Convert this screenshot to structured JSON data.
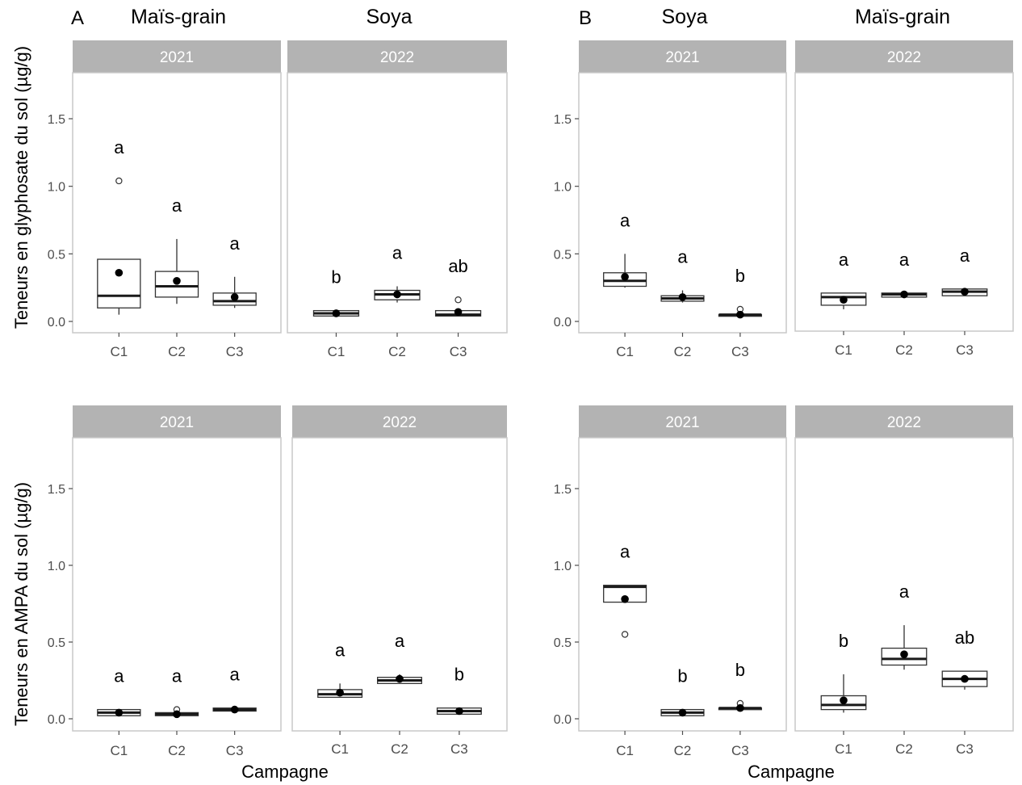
{
  "figure": {
    "panel_labels": [
      "A",
      "B"
    ],
    "crop_labels": [
      {
        "group": "A",
        "text": "Maïs-grain"
      },
      {
        "group": "A",
        "text": "Soya"
      },
      {
        "group": "B",
        "text": "Soya"
      },
      {
        "group": "B",
        "text": "Maïs-grain"
      }
    ],
    "y_labels": [
      "Teneurs en glyphosate du sol (µg/g)",
      "Teneurs en AMPA du sol (µg/g)"
    ],
    "x_label": "Campagne"
  },
  "chart_data": [
    {
      "type": "boxplot",
      "group": "A",
      "row": "glyphosate",
      "crop": "Maïs-grain",
      "facet": "2021",
      "ylim": [
        -0.06,
        1.83
      ],
      "yticks": [
        0.0,
        0.5,
        1.0,
        1.5
      ],
      "show_y_axis": true,
      "categories": [
        "C1",
        "C2",
        "C3"
      ],
      "boxes": [
        {
          "q1": 0.1,
          "median": 0.19,
          "q3": 0.46,
          "low": 0.05,
          "high": 0.46,
          "mean": 0.36,
          "outliers": [
            1.04
          ],
          "label": "a"
        },
        {
          "q1": 0.18,
          "median": 0.26,
          "q3": 0.37,
          "low": 0.13,
          "high": 0.61,
          "mean": 0.3,
          "outliers": [],
          "label": "a"
        },
        {
          "q1": 0.12,
          "median": 0.15,
          "q3": 0.21,
          "low": 0.1,
          "high": 0.33,
          "mean": 0.18,
          "outliers": [],
          "label": "a"
        }
      ]
    },
    {
      "type": "boxplot",
      "group": "A",
      "row": "glyphosate",
      "crop": "Soya",
      "facet": "2022",
      "ylim": [
        -0.06,
        1.83
      ],
      "yticks": [
        0.0,
        0.5,
        1.0,
        1.5
      ],
      "show_y_axis": false,
      "categories": [
        "C1",
        "C2",
        "C3"
      ],
      "boxes": [
        {
          "q1": 0.04,
          "median": 0.06,
          "q3": 0.08,
          "low": 0.04,
          "high": 0.08,
          "mean": 0.06,
          "outliers": [],
          "label": "b"
        },
        {
          "q1": 0.16,
          "median": 0.2,
          "q3": 0.23,
          "low": 0.14,
          "high": 0.26,
          "mean": 0.2,
          "outliers": [],
          "label": "a"
        },
        {
          "q1": 0.04,
          "median": 0.05,
          "q3": 0.08,
          "low": 0.04,
          "high": 0.08,
          "mean": 0.07,
          "outliers": [
            0.16
          ],
          "label": "ab"
        }
      ]
    },
    {
      "type": "boxplot",
      "group": "B",
      "row": "glyphosate",
      "crop": "Soya",
      "facet": "2021",
      "ylim": [
        -0.06,
        1.83
      ],
      "yticks": [
        0.0,
        0.5,
        1.0,
        1.5
      ],
      "show_y_axis": true,
      "categories": [
        "C1",
        "C2",
        "C3"
      ],
      "boxes": [
        {
          "q1": 0.26,
          "median": 0.3,
          "q3": 0.36,
          "low": 0.25,
          "high": 0.5,
          "mean": 0.33,
          "outliers": [],
          "label": "a"
        },
        {
          "q1": 0.15,
          "median": 0.17,
          "q3": 0.19,
          "low": 0.14,
          "high": 0.23,
          "mean": 0.18,
          "outliers": [],
          "label": "a"
        },
        {
          "q1": 0.04,
          "median": 0.05,
          "q3": 0.05,
          "low": 0.04,
          "high": 0.05,
          "mean": 0.05,
          "outliers": [
            0.09
          ],
          "label": "b"
        }
      ]
    },
    {
      "type": "boxplot",
      "group": "B",
      "row": "glyphosate",
      "crop": "Maïs-grain",
      "facet": "2022",
      "ylim": [
        -0.06,
        1.83
      ],
      "yticks": [
        0.0,
        0.5,
        1.0,
        1.5
      ],
      "show_y_axis": false,
      "categories": [
        "C1",
        "C2",
        "C3"
      ],
      "boxes": [
        {
          "q1": 0.12,
          "median": 0.18,
          "q3": 0.21,
          "low": 0.09,
          "high": 0.21,
          "mean": 0.16,
          "outliers": [],
          "label": "a"
        },
        {
          "q1": 0.18,
          "median": 0.2,
          "q3": 0.21,
          "low": 0.18,
          "high": 0.21,
          "mean": 0.2,
          "outliers": [],
          "label": "a"
        },
        {
          "q1": 0.19,
          "median": 0.22,
          "q3": 0.24,
          "low": 0.19,
          "high": 0.24,
          "mean": 0.22,
          "outliers": [],
          "label": "a"
        }
      ]
    },
    {
      "type": "boxplot",
      "group": "A",
      "row": "AMPA",
      "crop": "Maïs-grain",
      "facet": "2021",
      "ylim": [
        -0.06,
        1.83
      ],
      "yticks": [
        0.0,
        0.5,
        1.0,
        1.5
      ],
      "show_y_axis": true,
      "categories": [
        "C1",
        "C2",
        "C3"
      ],
      "boxes": [
        {
          "q1": 0.02,
          "median": 0.04,
          "q3": 0.06,
          "low": 0.02,
          "high": 0.06,
          "mean": 0.04,
          "outliers": [],
          "label": "a"
        },
        {
          "q1": 0.02,
          "median": 0.03,
          "q3": 0.04,
          "low": 0.02,
          "high": 0.04,
          "mean": 0.03,
          "outliers": [
            0.06
          ],
          "label": "a"
        },
        {
          "q1": 0.05,
          "median": 0.06,
          "q3": 0.07,
          "low": 0.05,
          "high": 0.07,
          "mean": 0.06,
          "outliers": [],
          "label": "a"
        }
      ]
    },
    {
      "type": "boxplot",
      "group": "A",
      "row": "AMPA",
      "crop": "Soya",
      "facet": "2022",
      "ylim": [
        -0.06,
        1.83
      ],
      "yticks": [
        0.0,
        0.5,
        1.0,
        1.5
      ],
      "show_y_axis": false,
      "categories": [
        "C1",
        "C2",
        "C3"
      ],
      "boxes": [
        {
          "q1": 0.14,
          "median": 0.16,
          "q3": 0.19,
          "low": 0.14,
          "high": 0.23,
          "mean": 0.17,
          "outliers": [],
          "label": "a"
        },
        {
          "q1": 0.23,
          "median": 0.25,
          "q3": 0.27,
          "low": 0.23,
          "high": 0.29,
          "mean": 0.26,
          "outliers": [],
          "label": "a"
        },
        {
          "q1": 0.03,
          "median": 0.05,
          "q3": 0.07,
          "low": 0.03,
          "high": 0.07,
          "mean": 0.05,
          "outliers": [],
          "label": "b"
        }
      ]
    },
    {
      "type": "boxplot",
      "group": "B",
      "row": "AMPA",
      "crop": "Soya",
      "facet": "2021",
      "ylim": [
        -0.06,
        1.83
      ],
      "yticks": [
        0.0,
        0.5,
        1.0,
        1.5
      ],
      "show_y_axis": true,
      "categories": [
        "C1",
        "C2",
        "C3"
      ],
      "boxes": [
        {
          "q1": 0.76,
          "median": 0.86,
          "q3": 0.87,
          "low": 0.76,
          "high": 0.87,
          "mean": 0.78,
          "outliers": [
            0.55
          ],
          "label": "a"
        },
        {
          "q1": 0.02,
          "median": 0.04,
          "q3": 0.06,
          "low": 0.02,
          "high": 0.06,
          "mean": 0.04,
          "outliers": [],
          "label": "b"
        },
        {
          "q1": 0.06,
          "median": 0.07,
          "q3": 0.07,
          "low": 0.06,
          "high": 0.07,
          "mean": 0.07,
          "outliers": [
            0.1
          ],
          "label": "b"
        }
      ]
    },
    {
      "type": "boxplot",
      "group": "B",
      "row": "AMPA",
      "crop": "Maïs-grain",
      "facet": "2022",
      "ylim": [
        -0.06,
        1.83
      ],
      "yticks": [
        0.0,
        0.5,
        1.0,
        1.5
      ],
      "show_y_axis": false,
      "categories": [
        "C1",
        "C2",
        "C3"
      ],
      "boxes": [
        {
          "q1": 0.06,
          "median": 0.09,
          "q3": 0.15,
          "low": 0.04,
          "high": 0.29,
          "mean": 0.12,
          "outliers": [],
          "label": "b"
        },
        {
          "q1": 0.35,
          "median": 0.39,
          "q3": 0.46,
          "low": 0.32,
          "high": 0.61,
          "mean": 0.42,
          "outliers": [],
          "label": "a"
        },
        {
          "q1": 0.21,
          "median": 0.26,
          "q3": 0.31,
          "low": 0.19,
          "high": 0.31,
          "mean": 0.26,
          "outliers": [],
          "label": "ab"
        }
      ]
    }
  ]
}
